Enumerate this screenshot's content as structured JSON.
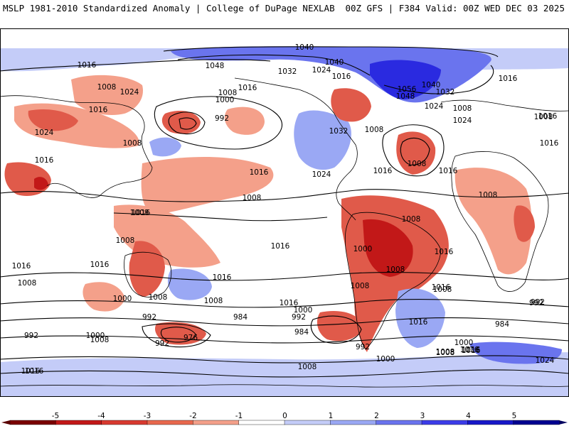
{
  "header": {
    "left_title": "MSLP 1981-2010 Standardized Anomaly | College of DuPage NEXLAB",
    "right_title": "00Z GFS | F384 Valid: 00Z WED DEC 03 2025"
  },
  "colors": {
    "neg_strong": "#c21818",
    "neg_mid": "#e05a4a",
    "neg_light": "#f4a08a",
    "neg_faint": "#f8c8b8",
    "pos_faint": "#c4ccf8",
    "pos_light": "#9aa8f4",
    "pos_mid": "#6a74ee",
    "pos_strong": "#2a2ae0",
    "land_outline": "#000000",
    "isobar": "#000000"
  },
  "colorbar": {
    "ticks": [
      "-5",
      "-4",
      "-3",
      "-2",
      "-1",
      "0",
      "1",
      "2",
      "3",
      "4",
      "5"
    ],
    "segments": [
      "#7a0000",
      "#c21818",
      "#d83a30",
      "#e8684e",
      "#f4a08a",
      "#ffffff",
      "#c4ccf8",
      "#9aa8f4",
      "#6a74ee",
      "#3c3ce8",
      "#1818c8",
      "#000090"
    ]
  },
  "isobar_labels": [
    {
      "text": "1040"
    },
    {
      "text": "1048"
    },
    {
      "text": "1032"
    },
    {
      "text": "1024"
    },
    {
      "text": "1040"
    },
    {
      "text": "1016"
    },
    {
      "text": "1056"
    },
    {
      "text": "1040"
    },
    {
      "text": "1032"
    },
    {
      "text": "1048"
    },
    {
      "text": "1024"
    },
    {
      "text": "1016"
    },
    {
      "text": "1008"
    },
    {
      "text": "1024"
    },
    {
      "text": "1016"
    },
    {
      "text": "1008"
    },
    {
      "text": "1016"
    },
    {
      "text": "1008"
    },
    {
      "text": "1000"
    },
    {
      "text": "992"
    },
    {
      "text": "1016"
    },
    {
      "text": "1024"
    },
    {
      "text": "1016"
    },
    {
      "text": "1008"
    },
    {
      "text": "1016"
    },
    {
      "text": "1008"
    },
    {
      "text": "1032"
    },
    {
      "text": "1008"
    },
    {
      "text": "1024"
    },
    {
      "text": "1016"
    },
    {
      "text": "1008"
    },
    {
      "text": "1016"
    },
    {
      "text": "1024"
    },
    {
      "text": "1016"
    },
    {
      "text": "1008"
    },
    {
      "text": "1008"
    },
    {
      "text": "1016"
    },
    {
      "text": "1016"
    },
    {
      "text": "1008"
    },
    {
      "text": "1008"
    },
    {
      "text": "1008"
    },
    {
      "text": "1016"
    },
    {
      "text": "1016"
    },
    {
      "text": "1016"
    },
    {
      "text": "1016"
    },
    {
      "text": "1008"
    },
    {
      "text": "1016"
    },
    {
      "text": "1008"
    },
    {
      "text": "1000"
    },
    {
      "text": "1008"
    },
    {
      "text": "1016"
    },
    {
      "text": "1008"
    },
    {
      "text": "1008"
    },
    {
      "text": "1008"
    },
    {
      "text": "1016"
    },
    {
      "text": "1000"
    },
    {
      "text": "992"
    },
    {
      "text": "1000"
    },
    {
      "text": "992"
    },
    {
      "text": "984"
    },
    {
      "text": "992"
    },
    {
      "text": "984"
    },
    {
      "text": "976"
    },
    {
      "text": "992"
    },
    {
      "text": "1008"
    },
    {
      "text": "1000"
    },
    {
      "text": "1008"
    },
    {
      "text": "1016"
    },
    {
      "text": "1016"
    },
    {
      "text": "992"
    },
    {
      "text": "1000"
    },
    {
      "text": "1008"
    },
    {
      "text": "1016"
    },
    {
      "text": "1024"
    },
    {
      "text": "992"
    },
    {
      "text": "984"
    },
    {
      "text": "1008"
    },
    {
      "text": "1000"
    },
    {
      "text": "1016"
    },
    {
      "text": "992"
    },
    {
      "text": "1016"
    },
    {
      "text": "1016"
    }
  ]
}
